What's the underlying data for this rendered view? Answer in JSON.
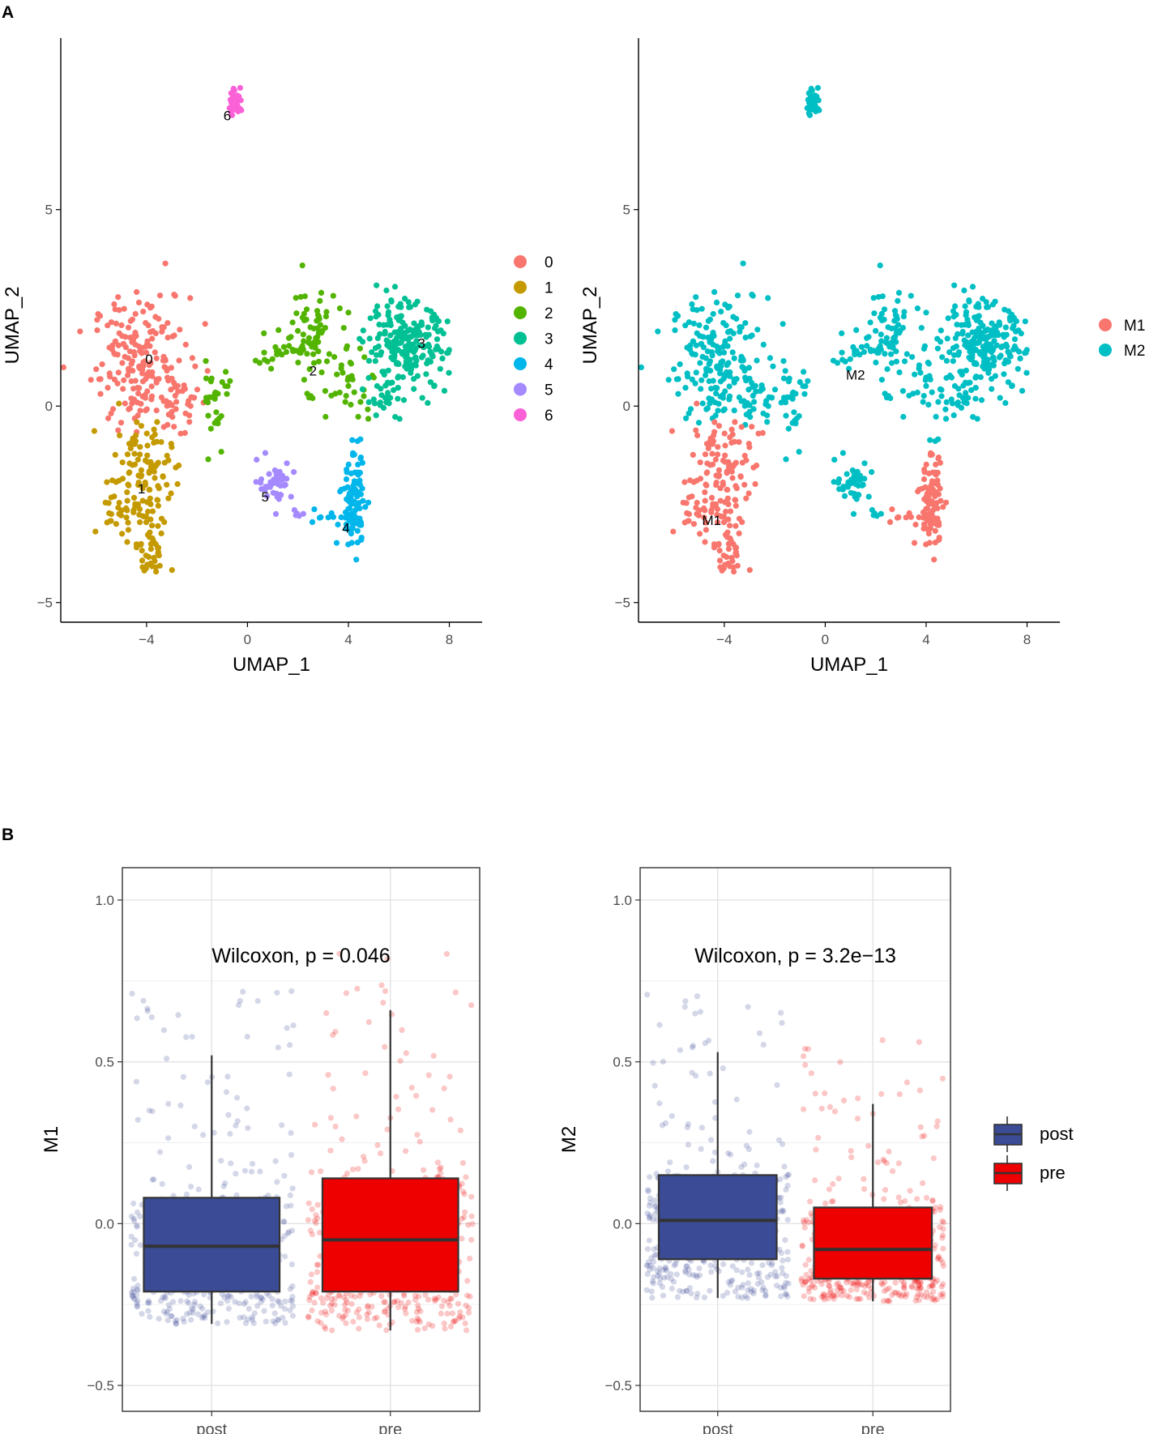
{
  "panel_labels": {
    "a": "A",
    "b": "B"
  },
  "colors": {
    "c0": "#F8766D",
    "c1": "#C49A00",
    "c2": "#53B400",
    "c3": "#00C094",
    "c4": "#00B6EB",
    "c5": "#A58AFF",
    "c6": "#FB61D7",
    "m1": "#F8766D",
    "m2": "#00BFC4",
    "post": "#3B4B96",
    "pre": "#EE0000"
  },
  "chart_data": [
    {
      "type": "scatter",
      "name": "umap-clusters",
      "xlabel": "UMAP_1",
      "ylabel": "UMAP_2",
      "xlim": [
        -7.4,
        9.3
      ],
      "ylim": [
        -5.5,
        9.2
      ],
      "xticks": [
        -4,
        0,
        4,
        8
      ],
      "yticks": [
        -5,
        0,
        5
      ],
      "xtick_labels": [
        "−4",
        "0",
        "4",
        "8"
      ],
      "ytick_labels": [
        "−5",
        "0",
        "5"
      ],
      "grid": false,
      "legend": {
        "position": "right",
        "entries": [
          "0",
          "1",
          "2",
          "3",
          "4",
          "5",
          "6"
        ]
      },
      "clusters": [
        {
          "id": "0",
          "label": "0",
          "color_key": "c0",
          "cx": -4.0,
          "cy": 1.2,
          "label_x": -3.9,
          "label_y": 1.2
        },
        {
          "id": "1",
          "label": "1",
          "color_key": "c1",
          "cx": -4.2,
          "cy": -2.2,
          "label_x": -4.2,
          "label_y": -2.1
        },
        {
          "id": "2",
          "label": "2",
          "color_key": "c2",
          "cx": 2.5,
          "cy": 1.5,
          "label_x": 2.6,
          "label_y": 0.9
        },
        {
          "id": "3",
          "label": "3",
          "color_key": "c3",
          "cx": 6.3,
          "cy": 1.4,
          "label_x": 6.9,
          "label_y": 1.6
        },
        {
          "id": "4",
          "label": "4",
          "color_key": "c4",
          "cx": 4.3,
          "cy": -2.6,
          "label_x": 3.9,
          "label_y": -3.1
        },
        {
          "id": "5",
          "label": "5",
          "color_key": "c5",
          "cx": 1.1,
          "cy": -2.0,
          "label_x": 0.7,
          "label_y": -2.3
        },
        {
          "id": "6",
          "label": "6",
          "color_key": "c6",
          "cx": -0.4,
          "cy": 7.8,
          "label_x": -0.8,
          "label_y": 7.4
        }
      ]
    },
    {
      "type": "scatter",
      "name": "umap-modules",
      "xlabel": "UMAP_1",
      "ylabel": "UMAP_2",
      "xlim": [
        -7.4,
        9.3
      ],
      "ylim": [
        -5.5,
        9.2
      ],
      "xticks": [
        -4,
        0,
        4,
        8
      ],
      "yticks": [
        -5,
        0,
        5
      ],
      "xtick_labels": [
        "−4",
        "0",
        "4",
        "8"
      ],
      "ytick_labels": [
        "−5",
        "0",
        "5"
      ],
      "grid": false,
      "legend": {
        "position": "right",
        "entries": [
          "M1",
          "M2"
        ]
      },
      "groups": [
        {
          "id": "M1",
          "label": "M1",
          "color_key": "m1",
          "label_x": -4.5,
          "label_y": -2.9
        },
        {
          "id": "M2",
          "label": "M2",
          "color_key": "m2",
          "label_x": 1.2,
          "label_y": 0.8
        }
      ]
    },
    {
      "type": "box",
      "name": "box-m1",
      "ylabel": "M1",
      "categories": [
        "post",
        "pre"
      ],
      "ylim": [
        -0.58,
        1.1
      ],
      "yticks": [
        -0.5,
        0.0,
        0.5,
        1.0
      ],
      "ytick_labels": [
        "−0.5",
        "0.0",
        "0.5",
        "1.0"
      ],
      "annotation": "Wilcoxon, p = 0.046",
      "grid": true,
      "boxes": [
        {
          "category": "post",
          "color_key": "post",
          "min": -0.31,
          "q1": -0.21,
          "median": -0.07,
          "q3": 0.08,
          "max": 0.52
        },
        {
          "category": "pre",
          "color_key": "pre",
          "min": -0.33,
          "q1": -0.21,
          "median": -0.05,
          "q3": 0.14,
          "max": 0.66
        }
      ]
    },
    {
      "type": "box",
      "name": "box-m2",
      "ylabel": "M2",
      "categories": [
        "post",
        "pre"
      ],
      "ylim": [
        -0.58,
        1.1
      ],
      "yticks": [
        -0.5,
        0.0,
        0.5,
        1.0
      ],
      "ytick_labels": [
        "−0.5",
        "0.0",
        "0.5",
        "1.0"
      ],
      "annotation": "Wilcoxon, p = 3.2e−13",
      "grid": true,
      "legend": {
        "position": "right",
        "entries": [
          "post",
          "pre"
        ]
      },
      "boxes": [
        {
          "category": "post",
          "color_key": "post",
          "min": -0.23,
          "q1": -0.11,
          "median": 0.01,
          "q3": 0.15,
          "max": 0.53
        },
        {
          "category": "pre",
          "color_key": "pre",
          "min": -0.24,
          "q1": -0.17,
          "median": -0.08,
          "q3": 0.05,
          "max": 0.37
        }
      ]
    }
  ]
}
